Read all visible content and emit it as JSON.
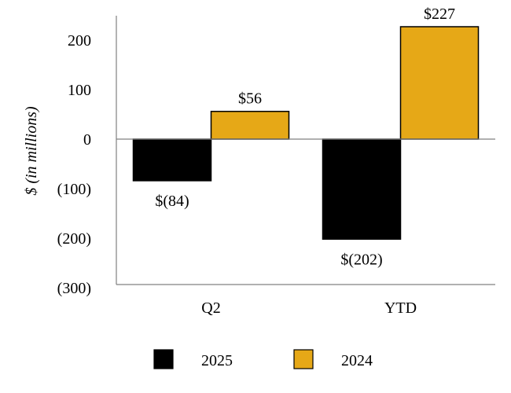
{
  "chart_data": {
    "type": "bar",
    "title": "",
    "xlabel": "",
    "ylabel": "$ (in millions)",
    "ylim": [
      -300,
      250
    ],
    "yticks": [
      200,
      100,
      0,
      -100,
      -200,
      -300
    ],
    "ytick_labels": [
      "200",
      "100",
      "0",
      "(100)",
      "(200)",
      "(300)"
    ],
    "categories": [
      "Q2",
      "YTD"
    ],
    "series": [
      {
        "name": "2025",
        "color": "#000000",
        "values": [
          -84,
          -202
        ],
        "labels": [
          "$(84)",
          "$(202)"
        ]
      },
      {
        "name": "2024",
        "color": "#E6A817",
        "values": [
          56,
          227
        ],
        "labels": [
          "$56",
          "$227"
        ]
      }
    ],
    "grid": false,
    "legend_position": "bottom"
  }
}
